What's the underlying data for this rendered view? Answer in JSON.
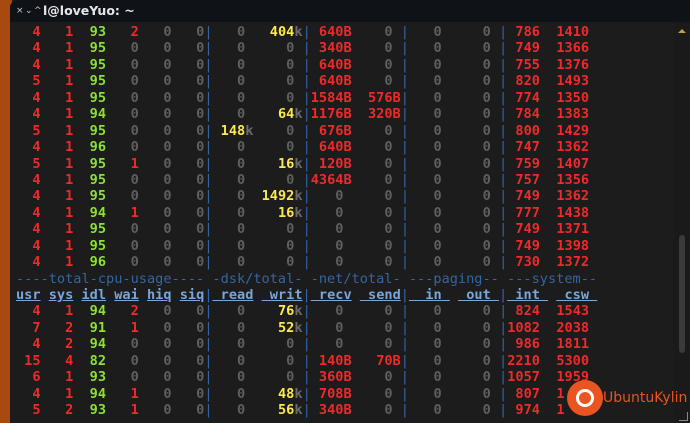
{
  "window": {
    "title": "l@loveYuo: ~",
    "buttons": [
      "×",
      "⌄",
      "^"
    ]
  },
  "colors": {
    "accent": "#e95420",
    "red": "#f02a2a",
    "green": "#8ae234",
    "yellow": "#fce94f",
    "separator": "#3465a4"
  },
  "group_header": "----total-cpu-usage---- -dsk/total- -net/total- ---paging-- ---system--",
  "columns": [
    "usr",
    "sys",
    "idl",
    "wai",
    "hiq",
    "siq",
    "read",
    "writ",
    "recv",
    "send",
    "in",
    "out",
    "int",
    "csw"
  ],
  "rows_top": [
    {
      "cpu": [
        4,
        1,
        93,
        2,
        0,
        0
      ],
      "dsk": [
        "0",
        "404k"
      ],
      "net": [
        "640B",
        "0"
      ],
      "paging": [
        "0",
        "0"
      ],
      "system": [
        786,
        1410
      ]
    },
    {
      "cpu": [
        4,
        1,
        95,
        0,
        0,
        0
      ],
      "dsk": [
        "0",
        "0"
      ],
      "net": [
        "340B",
        "0"
      ],
      "paging": [
        "0",
        "0"
      ],
      "system": [
        749,
        1366
      ]
    },
    {
      "cpu": [
        4,
        1,
        95,
        0,
        0,
        0
      ],
      "dsk": [
        "0",
        "0"
      ],
      "net": [
        "640B",
        "0"
      ],
      "paging": [
        "0",
        "0"
      ],
      "system": [
        755,
        1376
      ]
    },
    {
      "cpu": [
        5,
        1,
        95,
        0,
        0,
        0
      ],
      "dsk": [
        "0",
        "0"
      ],
      "net": [
        "640B",
        "0"
      ],
      "paging": [
        "0",
        "0"
      ],
      "system": [
        820,
        1493
      ]
    },
    {
      "cpu": [
        4,
        1,
        95,
        0,
        0,
        0
      ],
      "dsk": [
        "0",
        "0"
      ],
      "net": [
        "1584B",
        "576B"
      ],
      "paging": [
        "0",
        "0"
      ],
      "system": [
        774,
        1350
      ]
    },
    {
      "cpu": [
        4,
        1,
        94,
        0,
        0,
        0
      ],
      "dsk": [
        "0",
        "64k"
      ],
      "net": [
        "1176B",
        "320B"
      ],
      "paging": [
        "0",
        "0"
      ],
      "system": [
        784,
        1383
      ]
    },
    {
      "cpu": [
        5,
        1,
        95,
        0,
        0,
        0
      ],
      "dsk": [
        "148k",
        "0"
      ],
      "net": [
        "676B",
        "0"
      ],
      "paging": [
        "0",
        "0"
      ],
      "system": [
        800,
        1429
      ]
    },
    {
      "cpu": [
        4,
        1,
        96,
        0,
        0,
        0
      ],
      "dsk": [
        "0",
        "0"
      ],
      "net": [
        "640B",
        "0"
      ],
      "paging": [
        "0",
        "0"
      ],
      "system": [
        747,
        1362
      ]
    },
    {
      "cpu": [
        5,
        1,
        95,
        1,
        0,
        0
      ],
      "dsk": [
        "0",
        "16k"
      ],
      "net": [
        "120B",
        "0"
      ],
      "paging": [
        "0",
        "0"
      ],
      "system": [
        759,
        1407
      ]
    },
    {
      "cpu": [
        4,
        1,
        95,
        0,
        0,
        0
      ],
      "dsk": [
        "0",
        "0"
      ],
      "net": [
        "4364B",
        "0"
      ],
      "paging": [
        "0",
        "0"
      ],
      "system": [
        757,
        1356
      ]
    },
    {
      "cpu": [
        4,
        1,
        95,
        0,
        0,
        0
      ],
      "dsk": [
        "0",
        "1492k"
      ],
      "net": [
        "0",
        "0"
      ],
      "paging": [
        "0",
        "0"
      ],
      "system": [
        749,
        1362
      ]
    },
    {
      "cpu": [
        4,
        1,
        94,
        1,
        0,
        0
      ],
      "dsk": [
        "0",
        "16k"
      ],
      "net": [
        "0",
        "0"
      ],
      "paging": [
        "0",
        "0"
      ],
      "system": [
        777,
        1438
      ]
    },
    {
      "cpu": [
        4,
        1,
        95,
        0,
        0,
        0
      ],
      "dsk": [
        "0",
        "0"
      ],
      "net": [
        "0",
        "0"
      ],
      "paging": [
        "0",
        "0"
      ],
      "system": [
        749,
        1371
      ]
    },
    {
      "cpu": [
        4,
        1,
        95,
        0,
        0,
        0
      ],
      "dsk": [
        "0",
        "0"
      ],
      "net": [
        "0",
        "0"
      ],
      "paging": [
        "0",
        "0"
      ],
      "system": [
        749,
        1398
      ]
    },
    {
      "cpu": [
        4,
        1,
        96,
        0,
        0,
        0
      ],
      "dsk": [
        "0",
        "0"
      ],
      "net": [
        "0",
        "0"
      ],
      "paging": [
        "0",
        "0"
      ],
      "system": [
        730,
        1372
      ]
    }
  ],
  "rows_bottom": [
    {
      "cpu": [
        4,
        1,
        94,
        2,
        0,
        0
      ],
      "dsk": [
        "0",
        "76k"
      ],
      "net": [
        "0",
        "0"
      ],
      "paging": [
        "0",
        "0"
      ],
      "system": [
        824,
        1543
      ]
    },
    {
      "cpu": [
        7,
        2,
        91,
        1,
        0,
        0
      ],
      "dsk": [
        "0",
        "52k"
      ],
      "net": [
        "0",
        "0"
      ],
      "paging": [
        "0",
        "0"
      ],
      "system": [
        1082,
        2038
      ]
    },
    {
      "cpu": [
        4,
        2,
        94,
        0,
        0,
        0
      ],
      "dsk": [
        "0",
        "0"
      ],
      "net": [
        "0",
        "0"
      ],
      "paging": [
        "0",
        "0"
      ],
      "system": [
        986,
        1811
      ]
    },
    {
      "cpu": [
        15,
        4,
        82,
        0,
        0,
        0
      ],
      "dsk": [
        "0",
        "0"
      ],
      "net": [
        "140B",
        "70B"
      ],
      "paging": [
        "0",
        "0"
      ],
      "system": [
        2210,
        5300
      ]
    },
    {
      "cpu": [
        6,
        1,
        93,
        0,
        0,
        0
      ],
      "dsk": [
        "0",
        "0"
      ],
      "net": [
        "360B",
        "0"
      ],
      "paging": [
        "0",
        "0"
      ],
      "system": [
        1057,
        1959
      ]
    },
    {
      "cpu": [
        4,
        1,
        94,
        1,
        0,
        0
      ],
      "dsk": [
        "0",
        "48k"
      ],
      "net": [
        "708B",
        "0"
      ],
      "paging": [
        "0",
        "0"
      ],
      "system": [
        807,
        "1"
      ]
    },
    {
      "cpu": [
        5,
        2,
        93,
        1,
        0,
        0
      ],
      "dsk": [
        "0",
        "56k"
      ],
      "net": [
        "340B",
        "0"
      ],
      "paging": [
        "0",
        "0"
      ],
      "system": [
        974,
        "1"
      ]
    }
  ],
  "watermark": "UbuntuKylin"
}
